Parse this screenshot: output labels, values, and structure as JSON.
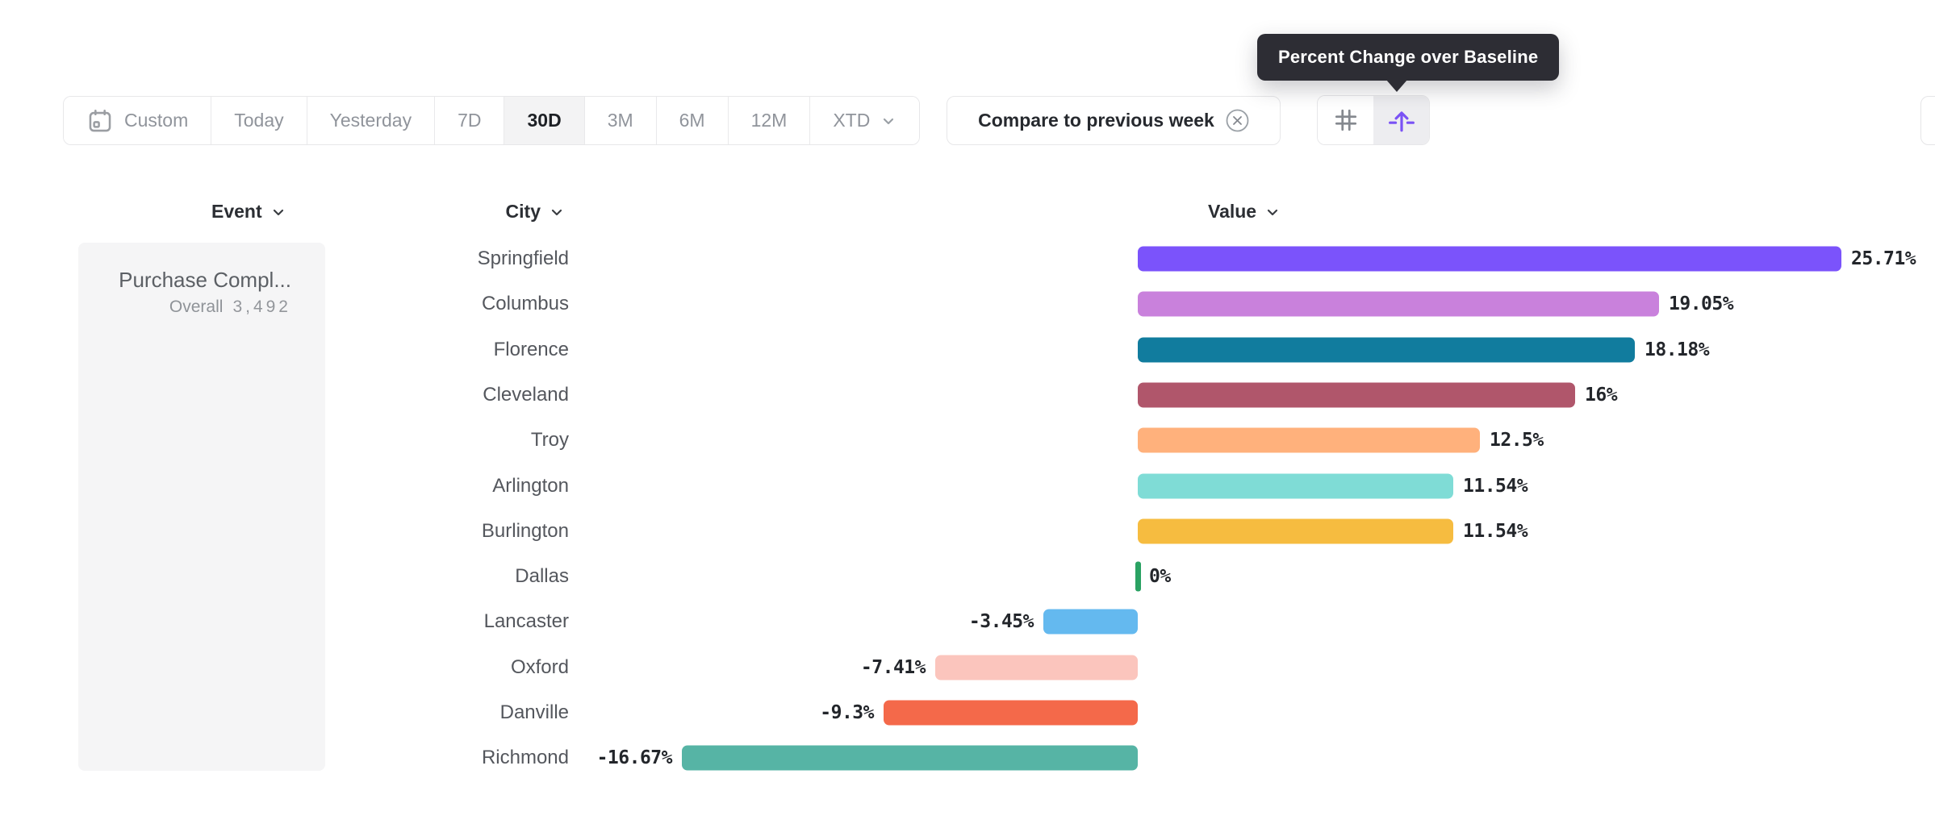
{
  "tooltip": {
    "text": "Percent Change over Baseline"
  },
  "toolbar": {
    "date_ranges": [
      {
        "label": "Custom",
        "icon": "calendar",
        "selected": false
      },
      {
        "label": "Today",
        "selected": false
      },
      {
        "label": "Yesterday",
        "selected": false
      },
      {
        "label": "7D",
        "selected": false
      },
      {
        "label": "30D",
        "selected": true
      },
      {
        "label": "3M",
        "selected": false
      },
      {
        "label": "6M",
        "selected": false
      },
      {
        "label": "12M",
        "selected": false
      },
      {
        "label": "XTD",
        "icon": "chevron",
        "selected": false
      }
    ],
    "compare_label": "Compare to previous week",
    "view_toggle": [
      {
        "name": "hash-view",
        "selected": false
      },
      {
        "name": "percent-change-baseline-view",
        "selected": true
      }
    ]
  },
  "columns": {
    "event": "Event",
    "city": "City",
    "value": "Value"
  },
  "event_panel": {
    "event_name": "Purchase Compl...",
    "overall_label": "Overall",
    "overall_value": "3,492"
  },
  "chart_data": {
    "type": "bar",
    "orientation": "horizontal",
    "title": "Percent Change over Baseline",
    "unit": "percent",
    "categories": [
      "Springfield",
      "Columbus",
      "Florence",
      "Cleveland",
      "Troy",
      "Arlington",
      "Burlington",
      "Dallas",
      "Lancaster",
      "Oxford",
      "Danville",
      "Richmond"
    ],
    "values": [
      25.71,
      19.05,
      18.18,
      16,
      12.5,
      11.54,
      11.54,
      0,
      -3.45,
      -7.41,
      -9.3,
      -16.67
    ],
    "value_labels": [
      "25.71%",
      "19.05%",
      "18.18%",
      "16%",
      "12.5%",
      "11.54%",
      "11.54%",
      "0%",
      "-3.45%",
      "-7.41%",
      "-9.3%",
      "-16.67%"
    ],
    "colors": [
      "#7b53fb",
      "#c981dc",
      "#117c9e",
      "#b0566b",
      "#ffb17c",
      "#7fdcd6",
      "#f6bc40",
      "#2aa263",
      "#64b9ef",
      "#fbc5bd",
      "#f4694a",
      "#56b4a5"
    ],
    "xlim": [
      -16.67,
      25.71
    ],
    "grid": false,
    "legend": false
  },
  "colors": {
    "accent_purple": "#7a52f5",
    "tooltip_bg": "#2d2d34",
    "selected_bg": "#f3f3f4",
    "border": "#e7e7e9",
    "muted_text": "#90949b",
    "dark_text": "#1d2025",
    "zero_marker_green": "#2aa263"
  }
}
